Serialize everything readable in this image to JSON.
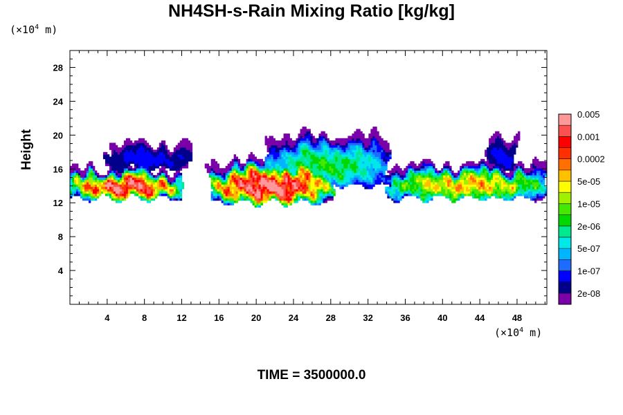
{
  "chart_data": {
    "type": "heatmap",
    "title": "NH4SH-s-Rain Mixing Ratio [kg/kg]",
    "ylabel": "Height",
    "x_unit": "(×10⁴ m)",
    "y_unit": "(×10⁴ m)",
    "footer": "TIME = 3500000.0",
    "xlim": [
      0,
      51.2
    ],
    "ylim": [
      0,
      30
    ],
    "x_ticks": [
      4,
      8,
      12,
      16,
      20,
      24,
      28,
      32,
      36,
      40,
      44,
      48
    ],
    "y_ticks": [
      4,
      8,
      12,
      16,
      20,
      24,
      28
    ],
    "grid": false,
    "colorbar": {
      "placement": "right",
      "colors": [
        "#7a00a8",
        "#00008a",
        "#0000ff",
        "#1e6cff",
        "#00b4ff",
        "#00e8e8",
        "#00e890",
        "#00d800",
        "#44e800",
        "#a0f000",
        "#ffff00",
        "#ffc000",
        "#ff7000",
        "#ff3000",
        "#ff0000",
        "#ff5050",
        "#ff9898"
      ],
      "labels": [
        "2e-08",
        "1e-07",
        "5e-07",
        "2e-06",
        "1e-05",
        "5e-05",
        "0.0002",
        "0.001",
        "0.005"
      ],
      "levels": [
        "1e-08",
        "2e-08",
        "5e-08",
        "1e-07",
        "2e-07",
        "5e-07",
        "1e-06",
        "2e-06",
        "5e-06",
        "1e-05",
        "2e-05",
        "5e-05",
        "0.0001",
        "0.0002",
        "0.0005",
        "0.001",
        "0.002",
        "0.005"
      ]
    },
    "field": {
      "description_units": "kg/kg",
      "regions": [
        {
          "x_range": [
            0,
            12
          ],
          "z_base": 12.5,
          "z_top": 16.0,
          "peak_level": 15
        },
        {
          "x_range": [
            4,
            13
          ],
          "z_base": 16.0,
          "z_top": 19.0,
          "peak_level": 2
        },
        {
          "x_range": [
            15,
            28
          ],
          "z_base": 12.0,
          "z_top": 17.0,
          "peak_level": 16
        },
        {
          "x_range": [
            21,
            34
          ],
          "z_base": 14.0,
          "z_top": 20.0,
          "peak_level": 7
        },
        {
          "x_range": [
            28,
            38
          ],
          "z_base": 14.0,
          "z_top": 16.0,
          "peak_level": 3
        },
        {
          "x_range": [
            34,
            51.2
          ],
          "z_base": 12.5,
          "z_top": 16.5,
          "peak_level": 11
        },
        {
          "x_range": [
            45,
            48
          ],
          "z_base": 16.0,
          "z_top": 20.0,
          "peak_level": 2
        }
      ]
    }
  }
}
